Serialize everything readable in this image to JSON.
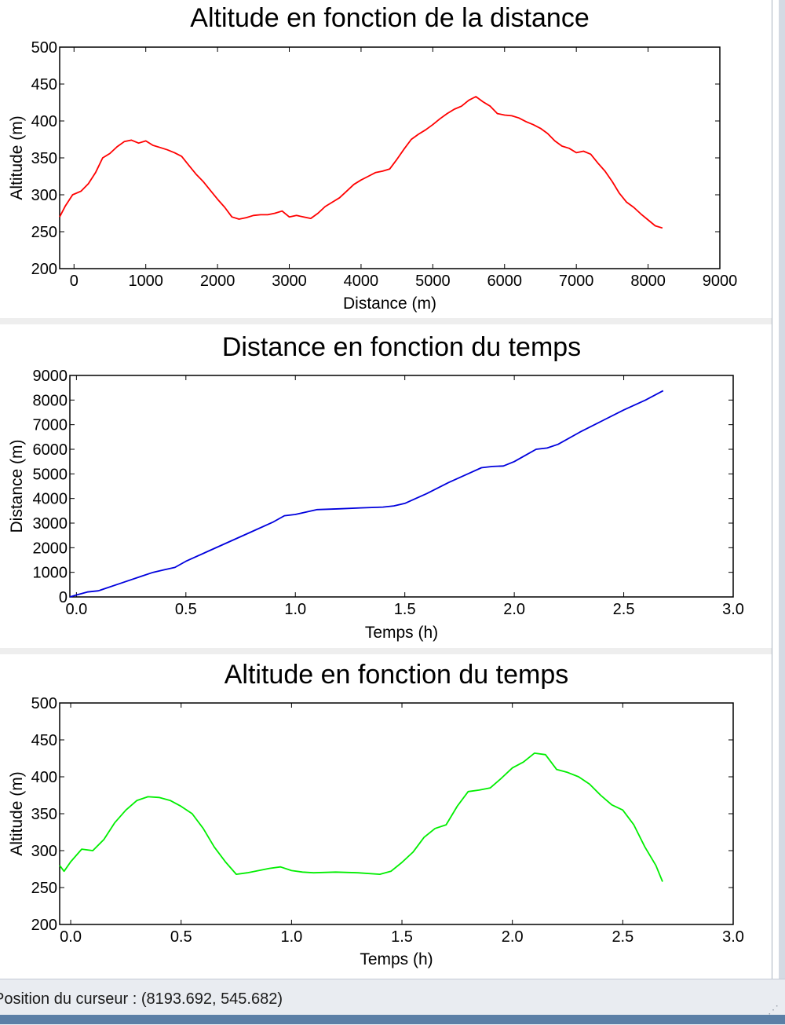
{
  "status_bar": {
    "cursor_text": "Position du curseur : (8193.692, 545.682)"
  },
  "chart_data": [
    {
      "type": "line",
      "title": "Altitude en fonction de la distance",
      "xlabel": "Distance (m)",
      "ylabel": "Altitude (m)",
      "xlim": [
        -200,
        9000
      ],
      "ylim": [
        200,
        500
      ],
      "xticks": [
        "0",
        "1000",
        "2000",
        "3000",
        "4000",
        "5000",
        "6000",
        "7000",
        "8000",
        "9000"
      ],
      "yticks": [
        "200",
        "250",
        "300",
        "350",
        "400",
        "450",
        "500"
      ],
      "series": [
        {
          "color": "#ff0000",
          "x": [
            -200,
            -120,
            -20,
            100,
            200,
            300,
            400,
            500,
            600,
            700,
            800,
            900,
            1000,
            1100,
            1200,
            1300,
            1400,
            1500,
            1600,
            1700,
            1800,
            1900,
            2000,
            2100,
            2200,
            2300,
            2400,
            2500,
            2600,
            2700,
            2800,
            2900,
            3000,
            3100,
            3200,
            3300,
            3400,
            3500,
            3600,
            3700,
            3800,
            3900,
            4000,
            4100,
            4200,
            4300,
            4400,
            4500,
            4600,
            4700,
            4800,
            4900,
            5000,
            5100,
            5200,
            5300,
            5400,
            5500,
            5600,
            5700,
            5800,
            5850,
            5900,
            6000,
            6100,
            6200,
            6300,
            6400,
            6500,
            6600,
            6700,
            6800,
            6900,
            7000,
            7100,
            7200,
            7300,
            7400,
            7500,
            7600,
            7700,
            7800,
            7900,
            8000,
            8100,
            8200
          ],
          "y": [
            270,
            285,
            300,
            305,
            315,
            330,
            350,
            356,
            365,
            372,
            374,
            370,
            373,
            367,
            364,
            361,
            357,
            352,
            340,
            328,
            318,
            306,
            294,
            283,
            270,
            267,
            269,
            272,
            273,
            273,
            275,
            278,
            270,
            272,
            270,
            268,
            275,
            284,
            290,
            296,
            305,
            314,
            320,
            325,
            330,
            332,
            335,
            348,
            362,
            375,
            382,
            388,
            395,
            403,
            410,
            416,
            420,
            428,
            433,
            426,
            420,
            415,
            410,
            408,
            407,
            404,
            399,
            395,
            390,
            383,
            373,
            366,
            363,
            357,
            359,
            355,
            343,
            332,
            318,
            302,
            290,
            283,
            274,
            266,
            258,
            255
          ]
        }
      ]
    },
    {
      "type": "line",
      "title": "Distance en fonction du temps",
      "xlabel": "Temps (h)",
      "ylabel": "Distance (m)",
      "xlim": [
        -0.03,
        3.0
      ],
      "ylim": [
        0,
        9000
      ],
      "xticks": [
        "0.0",
        "0.5",
        "1.0",
        "1.5",
        "2.0",
        "2.5",
        "3.0"
      ],
      "yticks": [
        "0",
        "1000",
        "2000",
        "3000",
        "4000",
        "5000",
        "6000",
        "7000",
        "8000",
        "9000"
      ],
      "series": [
        {
          "color": "#0000dd",
          "x": [
            -0.03,
            0.0,
            0.05,
            0.1,
            0.2,
            0.3,
            0.35,
            0.4,
            0.45,
            0.5,
            0.6,
            0.7,
            0.8,
            0.9,
            0.95,
            1.0,
            1.05,
            1.1,
            1.2,
            1.3,
            1.4,
            1.45,
            1.5,
            1.6,
            1.7,
            1.8,
            1.85,
            1.9,
            1.95,
            2.0,
            2.05,
            2.1,
            2.15,
            2.2,
            2.3,
            2.4,
            2.5,
            2.6,
            2.68
          ],
          "y": [
            0,
            80,
            200,
            250,
            550,
            850,
            1000,
            1100,
            1200,
            1450,
            1850,
            2250,
            2650,
            3050,
            3300,
            3350,
            3450,
            3550,
            3580,
            3620,
            3650,
            3700,
            3800,
            4200,
            4650,
            5050,
            5250,
            5300,
            5320,
            5500,
            5750,
            6000,
            6050,
            6200,
            6700,
            7150,
            7600,
            8000,
            8380
          ]
        }
      ]
    },
    {
      "type": "line",
      "title": "Altitude en fonction du temps",
      "xlabel": "Temps (h)",
      "ylabel": "Altitude (m)",
      "xlim": [
        -0.05,
        3.0
      ],
      "ylim": [
        200,
        500
      ],
      "xticks": [
        "0.0",
        "0.5",
        "1.0",
        "1.5",
        "2.0",
        "2.5",
        "3.0"
      ],
      "yticks": [
        "200",
        "250",
        "300",
        "350",
        "400",
        "450",
        "500"
      ],
      "series": [
        {
          "color": "#00ee00",
          "x": [
            -0.05,
            -0.03,
            0.0,
            0.05,
            0.1,
            0.15,
            0.2,
            0.25,
            0.3,
            0.35,
            0.4,
            0.45,
            0.5,
            0.55,
            0.6,
            0.65,
            0.7,
            0.75,
            0.8,
            0.9,
            0.95,
            1.0,
            1.05,
            1.1,
            1.2,
            1.3,
            1.4,
            1.45,
            1.5,
            1.55,
            1.6,
            1.65,
            1.7,
            1.75,
            1.8,
            1.85,
            1.9,
            1.95,
            2.0,
            2.05,
            2.1,
            2.15,
            2.2,
            2.25,
            2.3,
            2.35,
            2.4,
            2.45,
            2.5,
            2.55,
            2.6,
            2.65,
            2.68
          ],
          "y": [
            280,
            272,
            285,
            302,
            300,
            315,
            338,
            355,
            368,
            373,
            372,
            368,
            360,
            350,
            330,
            305,
            285,
            268,
            270,
            276,
            278,
            273,
            271,
            270,
            271,
            270,
            268,
            272,
            284,
            298,
            318,
            330,
            335,
            360,
            380,
            382,
            385,
            398,
            412,
            420,
            432,
            430,
            410,
            406,
            400,
            390,
            375,
            362,
            355,
            335,
            305,
            280,
            258
          ]
        }
      ]
    }
  ]
}
